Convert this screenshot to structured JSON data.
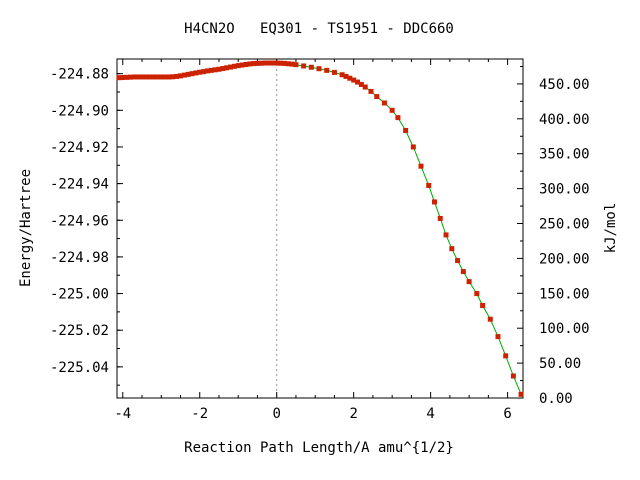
{
  "chart_data": {
    "type": "line",
    "title": "H4CN2O   EQ301 - TS1951 - DDC660",
    "xlabel": "Reaction Path Length/A amu^{1/2}",
    "ylabel": "Energy/Hartree",
    "y2label": "kJ/mol",
    "xlim": [
      -4.15,
      6.4
    ],
    "ylim": [
      -225.057,
      -224.872
    ],
    "y2lim": [
      0.0,
      485.7
    ],
    "xticks": [
      -4,
      -2,
      0,
      2,
      4,
      6
    ],
    "xtick_labels": [
      "-4",
      "-2",
      "0",
      "2",
      "4",
      "6"
    ],
    "yticks": [
      -224.88,
      -224.9,
      -224.92,
      -224.94,
      -224.96,
      -224.98,
      -225.0,
      -225.02,
      -225.04
    ],
    "ytick_labels": [
      "-224.88",
      "-224.90",
      "-224.92",
      "-224.94",
      "-224.96",
      "-224.98",
      "-225.00",
      "-225.02",
      "-225.04"
    ],
    "y2ticks": [
      450,
      400,
      350,
      300,
      250,
      200,
      150,
      100,
      50,
      0
    ],
    "y2tick_labels": [
      "450.00",
      "400.00",
      "350.00",
      "300.00",
      "250.00",
      "200.00",
      "150.00",
      "100.00",
      "50.00",
      "0.00"
    ],
    "vline_x": 0,
    "grid": false,
    "series": [
      {
        "line_color": "#00aa00",
        "marker_color": "#cc2200",
        "x": [
          -4.1,
          -4.0,
          -3.9,
          -3.8,
          -3.7,
          -3.6,
          -3.5,
          -3.4,
          -3.3,
          -3.2,
          -3.1,
          -3.0,
          -2.9,
          -2.8,
          -2.7,
          -2.6,
          -2.5,
          -2.4,
          -2.3,
          -2.2,
          -2.1,
          -2.0,
          -1.9,
          -1.8,
          -1.7,
          -1.6,
          -1.5,
          -1.4,
          -1.3,
          -1.2,
          -1.1,
          -1.0,
          -0.9,
          -0.8,
          -0.7,
          -0.6,
          -0.5,
          -0.4,
          -0.3,
          -0.2,
          -0.1,
          0.0,
          0.1,
          0.2,
          0.3,
          0.4,
          0.5,
          0.7,
          0.9,
          1.1,
          1.3,
          1.5,
          1.7,
          1.8,
          1.9,
          2.0,
          2.1,
          2.2,
          2.3,
          2.45,
          2.6,
          2.8,
          3.0,
          3.15,
          3.35,
          3.55,
          3.75,
          3.95,
          4.1,
          4.25,
          4.4,
          4.55,
          4.7,
          4.85,
          5.0,
          5.2,
          5.35,
          5.55,
          5.75,
          5.95,
          6.15,
          6.35
        ],
        "y": [
          -224.8822,
          -224.8821,
          -224.882,
          -224.8819,
          -224.8818,
          -224.8818,
          -224.8818,
          -224.8818,
          -224.8818,
          -224.8818,
          -224.8818,
          -224.8818,
          -224.8818,
          -224.8818,
          -224.8817,
          -224.8815,
          -224.8812,
          -224.8808,
          -224.8804,
          -224.88,
          -224.8796,
          -224.8792,
          -224.8789,
          -224.8785,
          -224.8782,
          -224.8779,
          -224.8776,
          -224.8772,
          -224.8768,
          -224.8764,
          -224.876,
          -224.8756,
          -224.8753,
          -224.875,
          -224.8747,
          -224.8745,
          -224.8744,
          -224.8743,
          -224.8742,
          -224.8742,
          -224.8742,
          -224.8742,
          -224.8743,
          -224.8744,
          -224.8746,
          -224.8748,
          -224.8751,
          -224.8758,
          -224.8765,
          -224.8773,
          -224.8782,
          -224.8793,
          -224.8806,
          -224.8815,
          -224.8825,
          -224.8835,
          -224.8846,
          -224.8859,
          -224.8873,
          -224.8897,
          -224.8925,
          -224.896,
          -224.9,
          -224.904,
          -224.911,
          -224.92,
          -224.9305,
          -224.941,
          -224.95,
          -224.959,
          -224.968,
          -224.9755,
          -224.982,
          -224.988,
          -224.9935,
          -225.0,
          -225.0065,
          -225.014,
          -225.0235,
          -225.034,
          -225.045,
          -225.055
        ]
      }
    ]
  }
}
